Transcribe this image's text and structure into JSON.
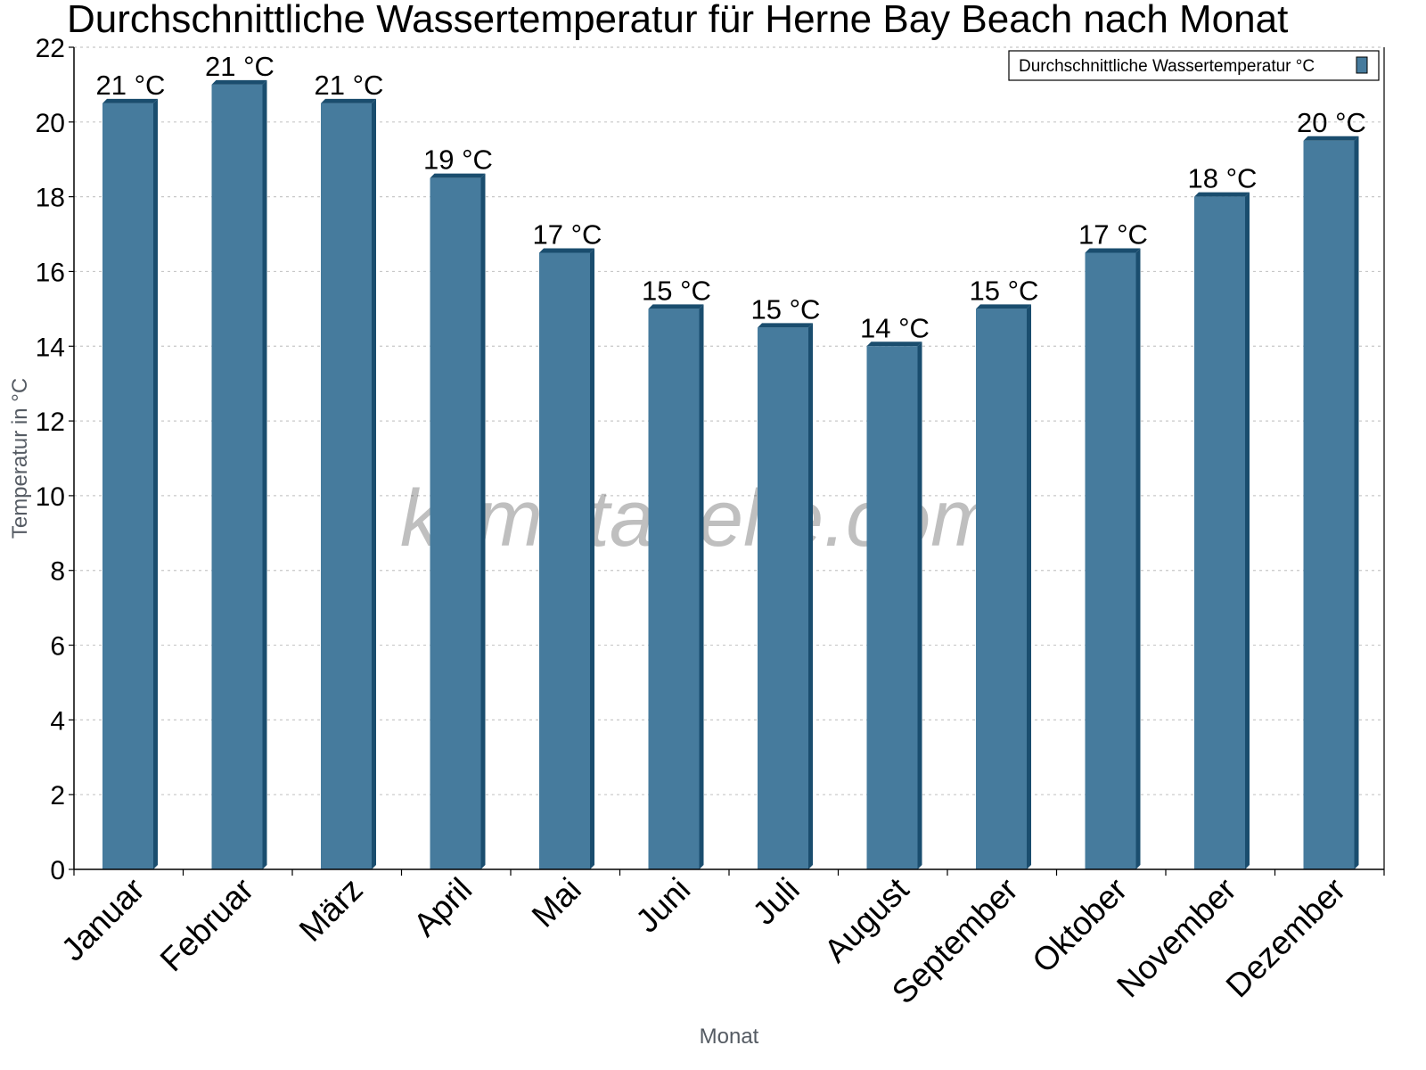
{
  "chart_data": {
    "type": "bar",
    "title": "Durchschnittliche Wassertemperatur für Herne Bay Beach nach Monat",
    "xlabel": "Monat",
    "ylabel": "Temperatur in °C",
    "ylim": [
      0,
      22
    ],
    "yticks": [
      0,
      2,
      4,
      6,
      8,
      10,
      12,
      14,
      16,
      18,
      20,
      22
    ],
    "grid": true,
    "legend_position": "top-right",
    "categories": [
      "Januar",
      "Februar",
      "März",
      "April",
      "Mai",
      "Juni",
      "Juli",
      "August",
      "September",
      "Oktober",
      "November",
      "Dezember"
    ],
    "series": [
      {
        "name": "Durchschnittliche Wassertemperatur °C",
        "color": "#467b9d",
        "values": [
          20.5,
          21.0,
          20.5,
          18.5,
          16.5,
          15.0,
          14.5,
          14.0,
          15.0,
          16.5,
          18.0,
          19.5
        ],
        "labels": [
          "21 °C",
          "21 °C",
          "21 °C",
          "19 °C",
          "17 °C",
          "15 °C",
          "15 °C",
          "14 °C",
          "15 °C",
          "17 °C",
          "18 °C",
          "20 °C"
        ]
      }
    ],
    "watermark": "klimatabelle.com"
  },
  "colors": {
    "bar_face": "#467b9d",
    "bar_side": "#1a4d6e",
    "grid": "#c8c8c8",
    "axis": "#000000"
  }
}
